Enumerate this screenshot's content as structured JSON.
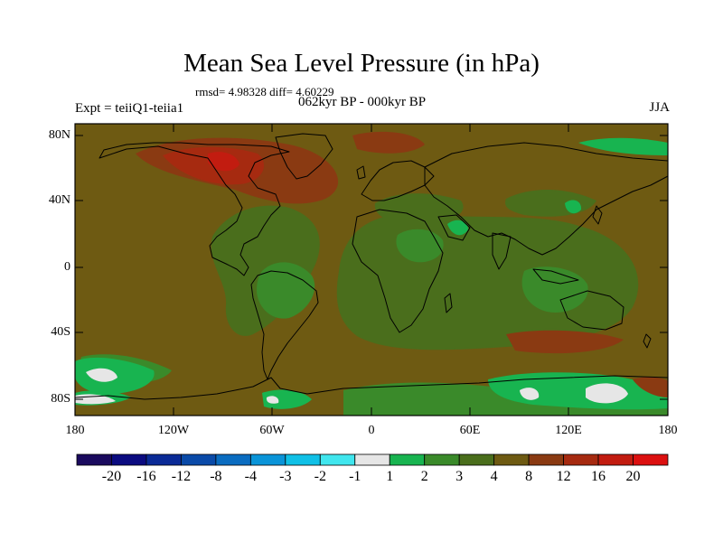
{
  "figure": {
    "title": "Mean Sea Level Pressure (in hPa)",
    "stats": "rmsd= 4.98328 diff= 4.60229",
    "experiment": "Expt = teiiQ1-teiia1",
    "period": "062kyr BP - 000kyr BP",
    "season": "JJA"
  },
  "axes": {
    "lat_ticks": [
      "80N",
      "40N",
      "0",
      "40S",
      "80S"
    ],
    "lon_ticks": [
      "180",
      "120W",
      "60W",
      "0",
      "60E",
      "120E",
      "180"
    ]
  },
  "colorbar": {
    "labels": [
      "-20",
      "-16",
      "-12",
      "-8",
      "-4",
      "-3",
      "-2",
      "-1",
      "1",
      "2",
      "3",
      "4",
      "8",
      "12",
      "16",
      "20"
    ],
    "colors": [
      "#1a0a5e",
      "#0b0b80",
      "#0a2a96",
      "#0a4aa8",
      "#0a6cc0",
      "#0a94d8",
      "#10c0e6",
      "#40e6ee",
      "#e6e6e6",
      "#18b450",
      "#3a8a2a",
      "#4a6e1c",
      "#6e5a12",
      "#8a3a12",
      "#a62a10",
      "#c21c10",
      "#dc1010"
    ]
  },
  "chart_data": {
    "type": "heatmap",
    "title": "Mean Sea Level Pressure (in hPa)",
    "x_range": [
      -180,
      180
    ],
    "y_range": [
      -90,
      90
    ],
    "x_ticks": [
      "180",
      "120W",
      "60W",
      "0",
      "60E",
      "120E",
      "180"
    ],
    "y_ticks": [
      "80N",
      "40N",
      "0",
      "40S",
      "80S"
    ],
    "levels": [
      -20,
      -16,
      -12,
      -8,
      -4,
      -3,
      -2,
      -1,
      1,
      2,
      3,
      4,
      8,
      12,
      16,
      20
    ]
  }
}
